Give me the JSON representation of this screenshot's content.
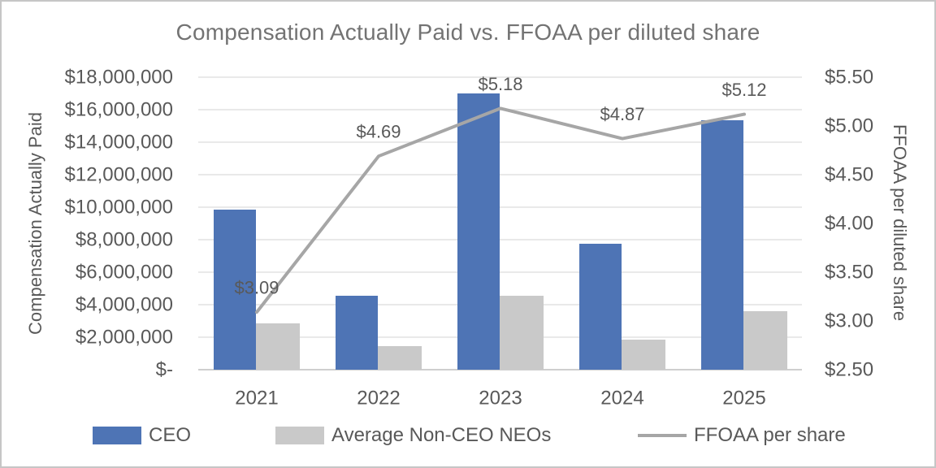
{
  "chart_data": {
    "type": "bar",
    "title": "Compensation Actually Paid vs. FFOAA per diluted share",
    "categories": [
      "2021",
      "2022",
      "2023",
      "2024",
      "2025"
    ],
    "series": [
      {
        "name": "CEO",
        "type": "bar",
        "axis": "left",
        "color": "#4E74B5",
        "values": [
          9850000,
          4550000,
          17000000,
          7750000,
          15350000
        ]
      },
      {
        "name": "Average Non-CEO NEOs",
        "type": "bar",
        "axis": "left",
        "color": "#C9C9C9",
        "values": [
          2850000,
          1450000,
          4550000,
          1850000,
          3600000
        ]
      },
      {
        "name": "FFOAA per share",
        "type": "line",
        "axis": "right",
        "color": "#A6A6A6",
        "values": [
          3.09,
          4.69,
          5.18,
          4.87,
          5.12
        ],
        "point_labels": [
          "$3.09",
          "$4.69",
          "$5.18",
          "$4.87",
          "$5.12"
        ]
      }
    ],
    "ylabel_left": "Compensation Actually Paid",
    "ylabel_right": "FFOAA per diluted share",
    "y_left": {
      "min": 0,
      "max": 18000000,
      "step": 2000000,
      "tick_labels_top_to_bottom": [
        "$18,000,000",
        "$16,000,000",
        "$14,000,000",
        "$12,000,000",
        "$10,000,000",
        "$8,000,000",
        "$6,000,000",
        "$4,000,000",
        "$2,000,000",
        "$-"
      ]
    },
    "y_right": {
      "min": 2.5,
      "max": 5.5,
      "step": 0.5,
      "tick_labels_top_to_bottom": [
        "$5.50",
        "$5.00",
        "$4.50",
        "$4.00",
        "$3.50",
        "$3.00",
        "$2.50"
      ]
    },
    "grid": true,
    "legend_position": "bottom",
    "colors": {
      "text": "#595959",
      "title_text": "#737373",
      "gridline": "#e2e2e2",
      "axis_line": "#cfcfcf"
    }
  }
}
